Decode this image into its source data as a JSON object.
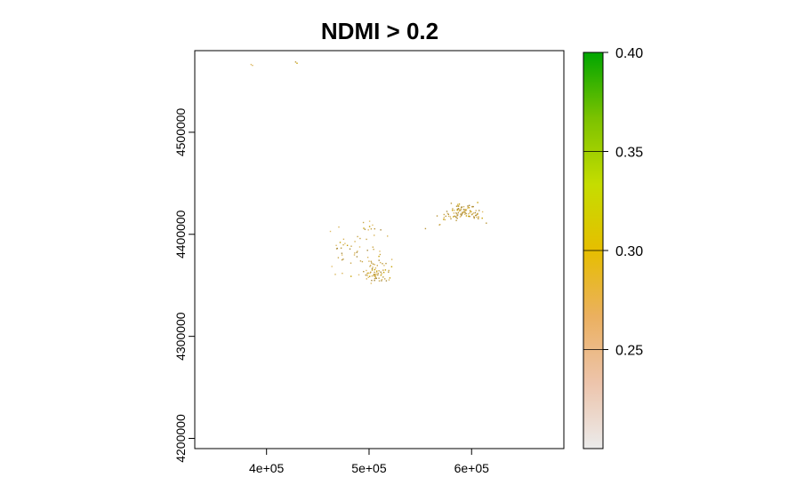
{
  "chart_data": {
    "type": "heatmap",
    "title": "NDMI > 0.2",
    "xlabel": "",
    "ylabel": "",
    "xlim": [
      330000,
      690000
    ],
    "ylim": [
      4190000,
      4580000
    ],
    "x_ticks": [
      {
        "value": 400000,
        "label": "4e+05"
      },
      {
        "value": 500000,
        "label": "5e+05"
      },
      {
        "value": 600000,
        "label": "6e+05"
      }
    ],
    "y_ticks": [
      {
        "value": 4200000,
        "label": "4200000"
      },
      {
        "value": 4300000,
        "label": "4300000"
      },
      {
        "value": 4400000,
        "label": "4400000"
      },
      {
        "value": 4500000,
        "label": "4500000"
      }
    ],
    "legend": {
      "min": 0.2,
      "max": 0.4,
      "ticks": [
        {
          "value": 0.25,
          "label": "0.25"
        },
        {
          "value": 0.3,
          "label": "0.30"
        },
        {
          "value": 0.35,
          "label": "0.35"
        },
        {
          "value": 0.4,
          "label": "0.40"
        }
      ],
      "colors": [
        "#ebebeb",
        "#edc4ab",
        "#ebb060",
        "#e6be00",
        "#c5dd00",
        "#7cc200",
        "#00a600"
      ]
    },
    "clusters": [
      {
        "center": [
          590000,
          4424000
        ],
        "spread": [
          18000,
          8000
        ],
        "count": 110,
        "arc": true
      },
      {
        "center": [
          507000,
          4362000
        ],
        "spread": [
          14000,
          10000
        ],
        "count": 70,
        "arc": false
      },
      {
        "center": [
          485000,
          4384000
        ],
        "spread": [
          28000,
          18000
        ],
        "count": 45,
        "arc": false
      },
      {
        "center": [
          500000,
          4408000
        ],
        "spread": [
          12000,
          8000
        ],
        "count": 10,
        "arc": false
      },
      {
        "center": [
          385000,
          4567000
        ],
        "spread": [
          2000,
          1000
        ],
        "count": 2,
        "arc": false
      },
      {
        "center": [
          428000,
          4569000
        ],
        "spread": [
          2000,
          1000
        ],
        "count": 2,
        "arc": false
      }
    ],
    "grid": false,
    "legend_placement": "right"
  }
}
